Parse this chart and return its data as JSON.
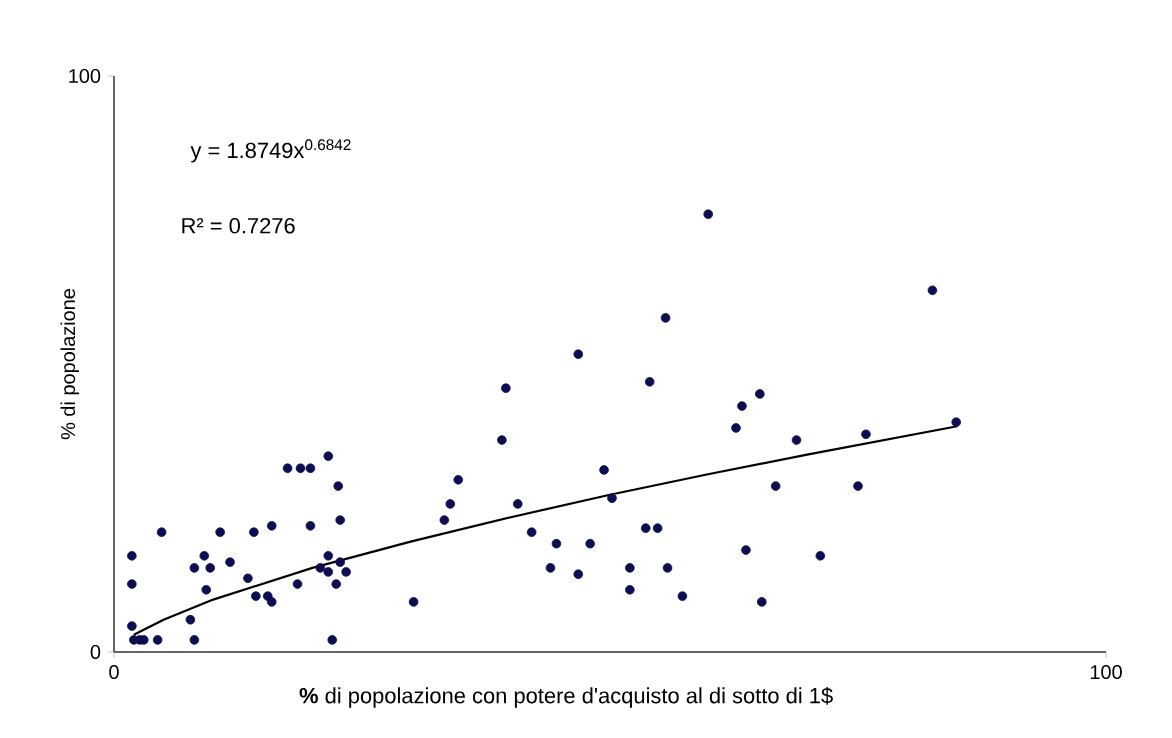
{
  "chart_data": {
    "type": "scatter",
    "xlabel": "**%** di popolazione con potere d'acquisto al di sotto di 1$",
    "ylabel": "% di popolazione",
    "annotations": [
      "y = 1.8749x$^{0.6842}$",
      "R² = 0.7276"
    ],
    "xlim": [
      0,
      100
    ],
    "ylim": [
      0,
      100
    ],
    "xticks": [
      0,
      100
    ],
    "yticks": [
      0,
      100
    ],
    "grid": false,
    "series": [
      {
        "color": "#0d0d52",
        "x": [
          1.8,
          1.8,
          1.8,
          2.0,
          2.6,
          3.0,
          4.4,
          4.8,
          7.7,
          8.1,
          8.1,
          9.1,
          9.3,
          9.7,
          10.7,
          11.7,
          13.5,
          14.1,
          14.3,
          15.5,
          15.9,
          15.9,
          17.5,
          18.8,
          19.8,
          19.8,
          18.5,
          20.8,
          21.6,
          21.6,
          21.6,
          22.0,
          22.4,
          22.6,
          22.8,
          22.8,
          23.4,
          30.2,
          33.3,
          33.9,
          34.7,
          39.1,
          39.5,
          40.7,
          42.1,
          44.0,
          44.6,
          46.8,
          46.8,
          48.0,
          49.4,
          50.2,
          52.0,
          52.0,
          53.6,
          54.0,
          54.8,
          55.6,
          55.8,
          57.3,
          59.9,
          62.7,
          63.3,
          65.1,
          63.7,
          65.3,
          66.7,
          68.8,
          71.2,
          75.0,
          75.8,
          82.5,
          84.9
        ],
        "values": [
          16.7,
          11.8,
          4.5,
          2.1,
          2.1,
          2.1,
          2.1,
          20.8,
          5.6,
          2.1,
          14.6,
          16.7,
          10.8,
          14.6,
          20.8,
          15.6,
          12.8,
          20.8,
          9.7,
          9.7,
          21.9,
          8.7,
          31.9,
          31.9,
          31.9,
          21.9,
          11.8,
          14.6,
          34.0,
          16.7,
          13.9,
          2.1,
          11.8,
          28.8,
          22.9,
          15.6,
          13.9,
          8.7,
          22.9,
          25.7,
          29.9,
          36.8,
          45.8,
          25.7,
          20.8,
          14.6,
          18.8,
          51.7,
          13.5,
          18.8,
          31.6,
          26.7,
          14.6,
          10.8,
          21.5,
          46.9,
          21.5,
          58.0,
          14.6,
          9.7,
          76.0,
          38.9,
          42.7,
          44.8,
          17.7,
          8.7,
          28.8,
          36.8,
          16.7,
          28.8,
          37.8,
          62.8,
          39.9
        ]
      },
      {
        "type": "line",
        "color": "#000000",
        "marker": "none",
        "line_style": "solid",
        "x": [
          2,
          5,
          10,
          20,
          30,
          40,
          50,
          60,
          70,
          85
        ],
        "values": [
          3.0,
          5.6,
          9.1,
          14.6,
          19.2,
          23.4,
          27.3,
          30.9,
          34.3,
          39.2
        ]
      }
    ]
  }
}
